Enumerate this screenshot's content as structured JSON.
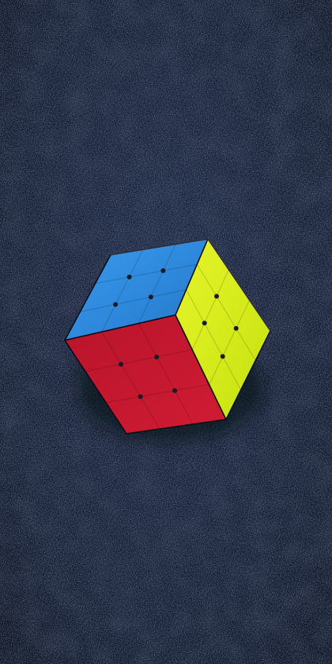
{
  "scene": {
    "subject": "cube",
    "colors": {
      "background": "#121b2d",
      "background_dark": "#0a0f1c",
      "speckle": "#3a4a6e",
      "top_face": "#2f8fe0",
      "left_face": "#c0182e",
      "right_face": "#d8f21a",
      "shadow": "#05070d"
    }
  }
}
